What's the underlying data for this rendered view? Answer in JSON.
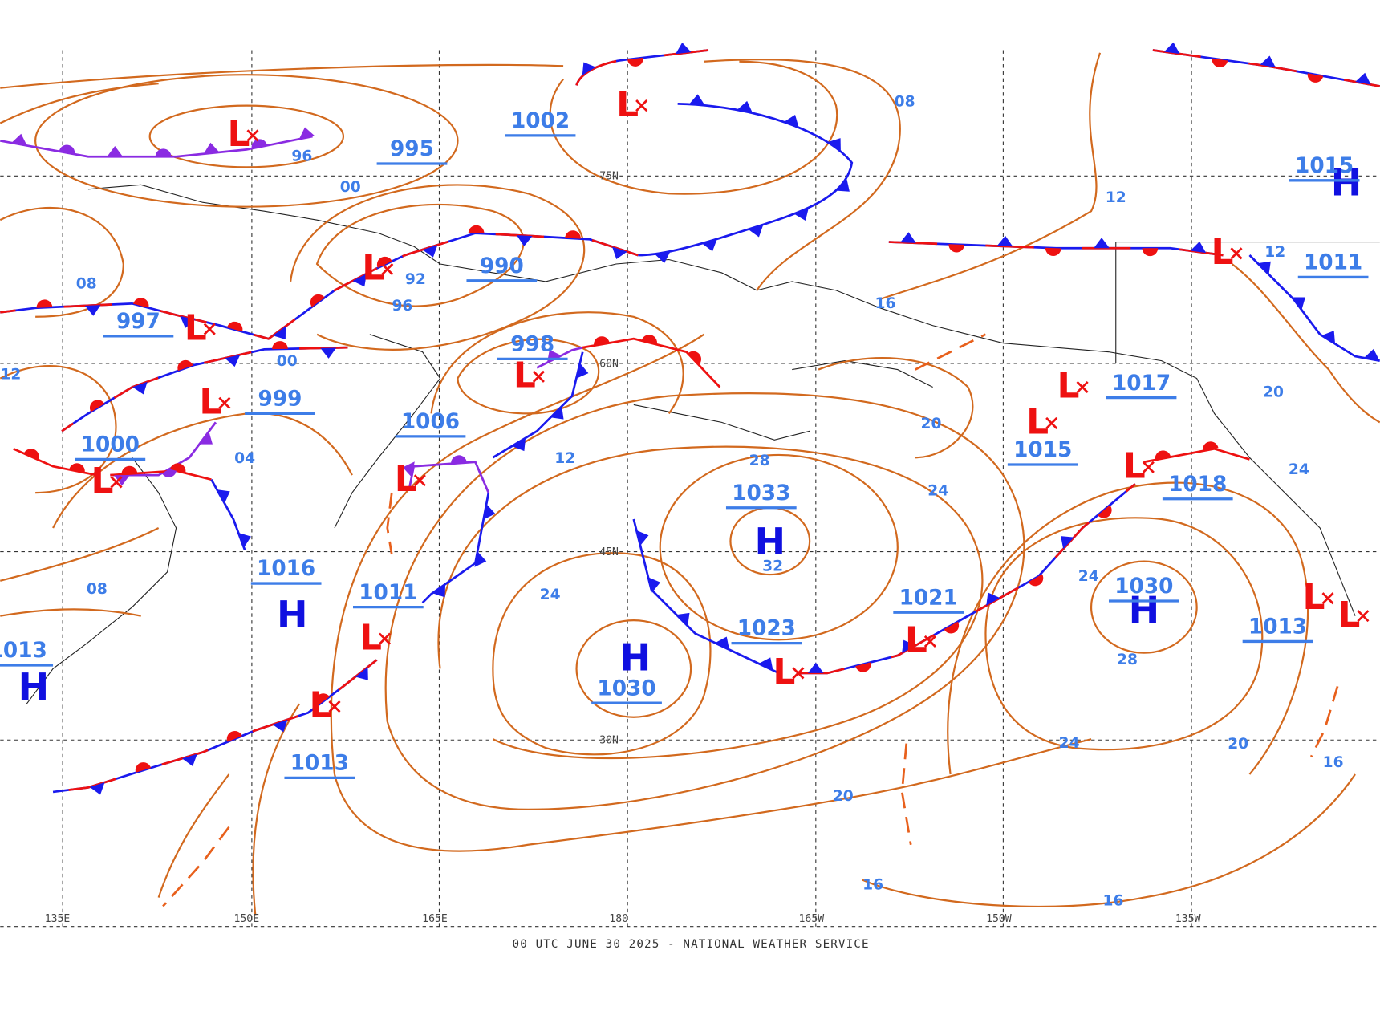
{
  "footer": "00 UTC JUNE 30 2025 - NATIONAL WEATHER SERVICE",
  "longitudes": [
    "135E",
    "150E",
    "165E",
    "180",
    "165W",
    "150W",
    "135W"
  ],
  "latitudes": [
    "75N",
    "60N",
    "45N",
    "30N"
  ],
  "high_symbol": "H",
  "low_symbol": "L",
  "pressure_centers": [
    "1002",
    "995",
    "990",
    "997",
    "998",
    "999",
    "1006",
    "1000",
    "1016",
    "1011",
    "1013",
    "1013",
    "1033",
    "1023",
    "1030",
    "1021",
    "1030",
    "1018",
    "1015",
    "1017",
    "1015",
    "1011",
    "1013"
  ],
  "isobar_labels": [
    "96",
    "00",
    "92",
    "96",
    "00",
    "08",
    "12",
    "12",
    "16",
    "12",
    "08",
    "04",
    "08",
    "12",
    "28",
    "32",
    "24",
    "20",
    "24",
    "24",
    "28",
    "20",
    "24",
    "24",
    "20",
    "16",
    "20",
    "16",
    "16"
  ]
}
